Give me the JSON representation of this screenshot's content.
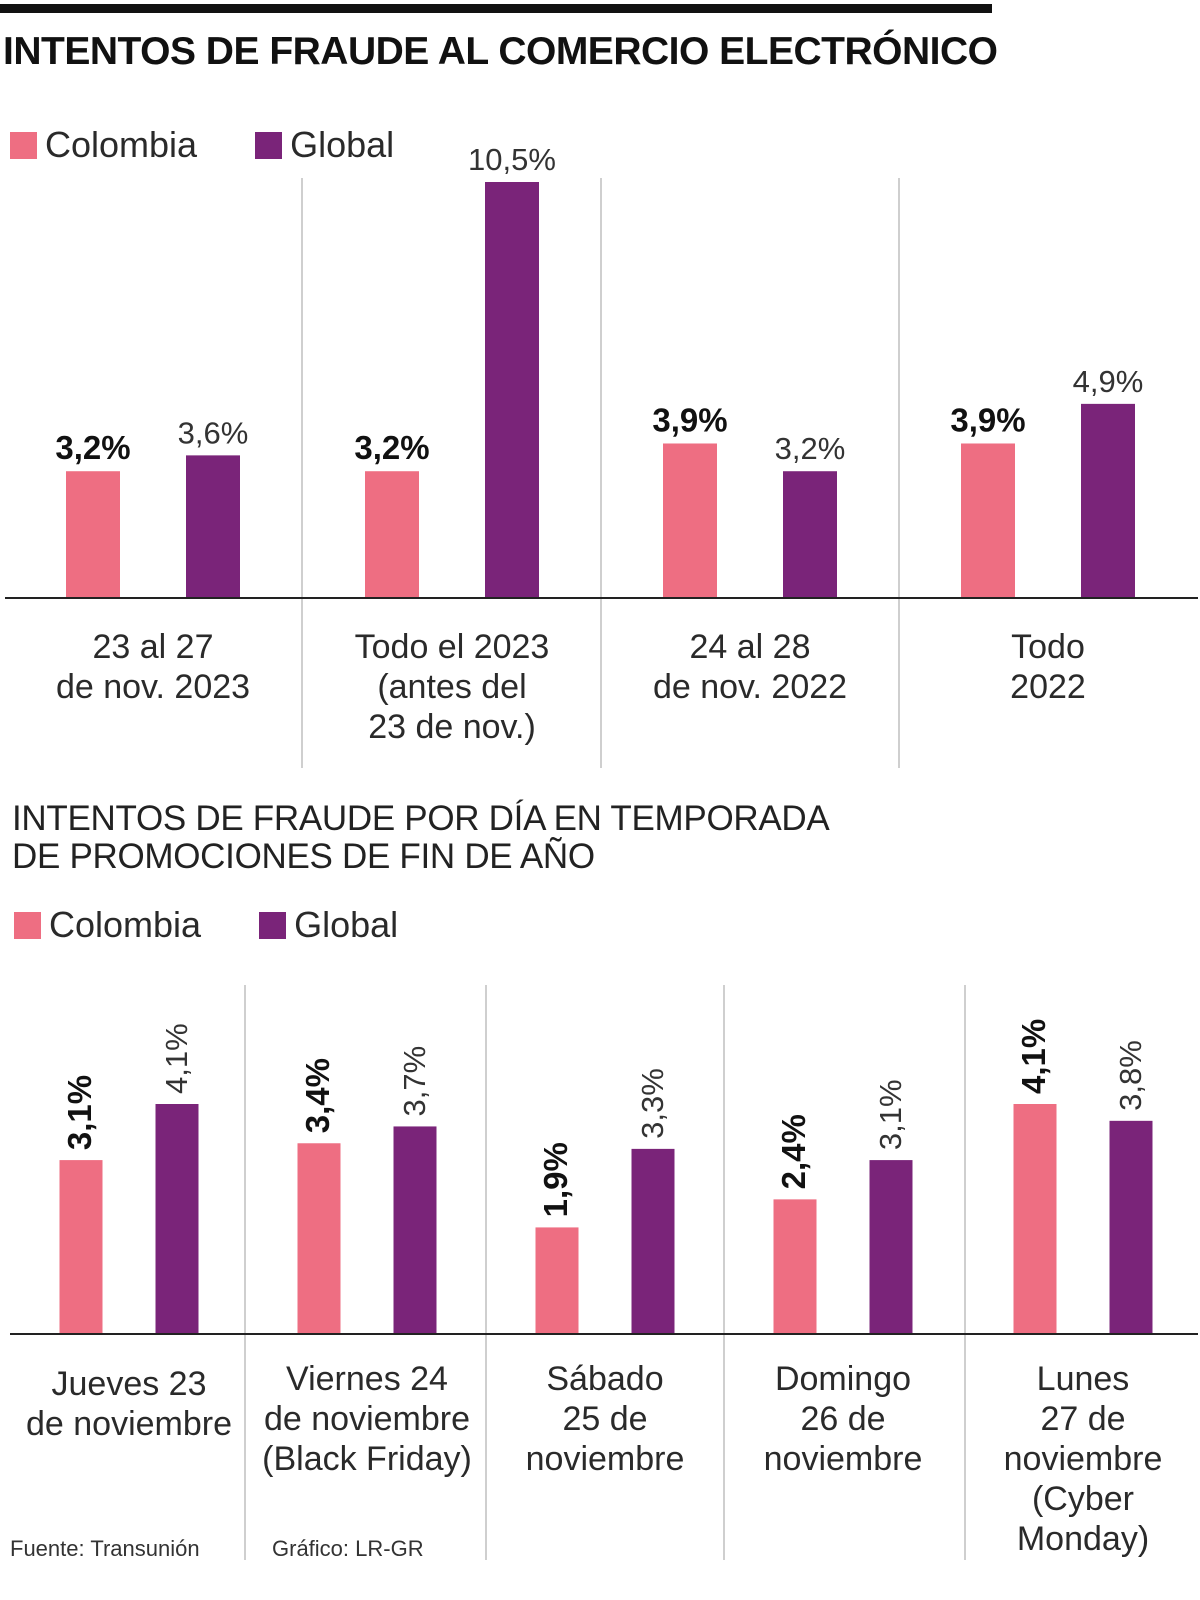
{
  "title": "INTENTOS DE FRAUDE AL COMERCIO ELECTRÓNICO",
  "colors": {
    "colombia": "#ee6e82",
    "global": "#7a2479",
    "divider": "#cfcfcf",
    "axis": "#222222"
  },
  "legend": [
    {
      "label": "Colombia",
      "color": "#ee6e82"
    },
    {
      "label": "Global",
      "color": "#7a2479"
    }
  ],
  "chart_data": [
    {
      "type": "bar",
      "title": "INTENTOS DE FRAUDE AL COMERCIO ELECTRÓNICO",
      "categories": [
        [
          "23 al 27",
          "de nov. 2023"
        ],
        [
          "Todo el 2023",
          "(antes del",
          "23 de nov.)"
        ],
        [
          "24 al 28",
          "de nov. 2022"
        ],
        [
          "Todo",
          "2022"
        ]
      ],
      "series": [
        {
          "name": "Colombia",
          "values": [
            3.2,
            3.2,
            3.9,
            3.9
          ],
          "labels": [
            "3,2%",
            "3,2%",
            "3,9%",
            "3,9%"
          ]
        },
        {
          "name": "Global",
          "values": [
            3.6,
            10.5,
            3.2,
            4.9
          ],
          "labels": [
            "3,6%",
            "10,5%",
            "3,2%",
            "4,9%"
          ]
        }
      ],
      "ylim": [
        0,
        10.5
      ],
      "legend_position": "top-left",
      "grid": false
    },
    {
      "type": "bar",
      "title": "INTENTOS DE FRAUDE POR DÍA EN TEMPORADA\nDE PROMOCIONES DE FIN DE AÑO",
      "categories": [
        [
          "Jueves 23",
          "de noviembre"
        ],
        [
          "Viernes 24",
          "de noviembre",
          "(Black Friday)"
        ],
        [
          "Sábado",
          "25 de",
          "noviembre"
        ],
        [
          "Domingo",
          "26 de",
          "noviembre"
        ],
        [
          "Lunes",
          "27 de",
          "noviembre",
          "(Cyber",
          "Monday)"
        ]
      ],
      "series": [
        {
          "name": "Colombia",
          "values": [
            3.1,
            3.4,
            1.9,
            2.4,
            4.1
          ],
          "labels": [
            "3,1%",
            "3,4%",
            "1,9%",
            "2,4%",
            "4,1%"
          ]
        },
        {
          "name": "Global",
          "values": [
            4.1,
            3.7,
            3.3,
            3.1,
            3.8
          ],
          "labels": [
            "4,1%",
            "3,7%",
            "3,3%",
            "3,1%",
            "3,8%"
          ]
        }
      ],
      "ylim": [
        0,
        4.1
      ],
      "legend_position": "top-left",
      "grid": false
    }
  ],
  "footer": {
    "source": "Fuente: Transunión",
    "credit": "Gráfico: LR-GR"
  }
}
